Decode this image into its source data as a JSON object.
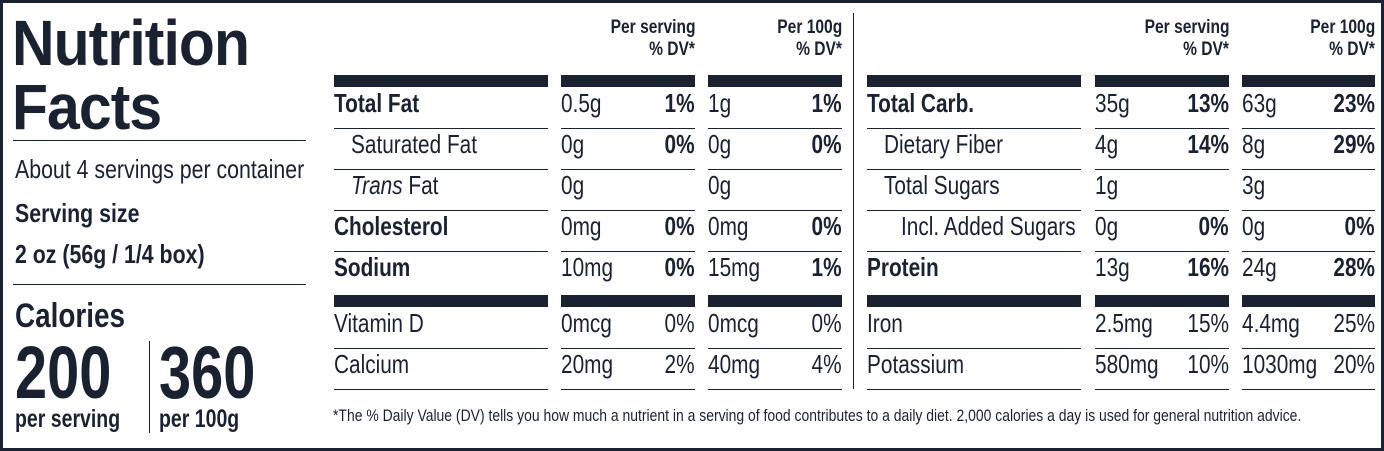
{
  "title_line1": "Nutrition",
  "title_line2": "Facts",
  "servings_per_container": "About 4 servings per container",
  "serving_size_label": "Serving size",
  "serving_size_value": "2 oz (56g / 1/4 box)",
  "calories_label": "Calories",
  "calories_per_serving": "200",
  "calories_per_serving_label": "per serving",
  "calories_per_100g": "360",
  "calories_per_100g_label": "per 100g",
  "column_headers": {
    "per_serving": "Per serving",
    "per_100g": "Per 100g",
    "dv": "% DV*"
  },
  "left_nutrients": [
    {
      "name": "Total Fat",
      "bold": true,
      "indent": 0,
      "serv_amt": "0.5g",
      "serv_dv": "1%",
      "g100_amt": "1g",
      "g100_dv": "1%"
    },
    {
      "name": "Saturated Fat",
      "bold": false,
      "indent": 1,
      "serv_amt": "0g",
      "serv_dv": "0%",
      "g100_amt": "0g",
      "g100_dv": "0%"
    },
    {
      "name_italic": "Trans",
      "name": " Fat",
      "bold": false,
      "indent": 1,
      "serv_amt": "0g",
      "serv_dv": "",
      "g100_amt": "0g",
      "g100_dv": ""
    },
    {
      "name": "Cholesterol",
      "bold": true,
      "indent": 0,
      "serv_amt": "0mg",
      "serv_dv": "0%",
      "g100_amt": "0mg",
      "g100_dv": "0%"
    },
    {
      "name": "Sodium",
      "bold": true,
      "indent": 0,
      "serv_amt": "10mg",
      "serv_dv": "0%",
      "g100_amt": "15mg",
      "g100_dv": "1%"
    }
  ],
  "right_nutrients": [
    {
      "name": "Total Carb.",
      "bold": true,
      "indent": 0,
      "serv_amt": "35g",
      "serv_dv": "13%",
      "g100_amt": "63g",
      "g100_dv": "23%"
    },
    {
      "name": "Dietary Fiber",
      "bold": false,
      "indent": 1,
      "serv_amt": "4g",
      "serv_dv": "14%",
      "g100_amt": "8g",
      "g100_dv": "29%"
    },
    {
      "name": "Total Sugars",
      "bold": false,
      "indent": 1,
      "serv_amt": "1g",
      "serv_dv": "",
      "g100_amt": "3g",
      "g100_dv": ""
    },
    {
      "name": "Incl. Added Sugars",
      "bold": false,
      "indent": 2,
      "serv_amt": "0g",
      "serv_dv": "0%",
      "g100_amt": "0g",
      "g100_dv": "0%"
    },
    {
      "name": "Protein",
      "bold": true,
      "indent": 0,
      "serv_amt": "13g",
      "serv_dv": "16%",
      "g100_amt": "24g",
      "g100_dv": "28%"
    }
  ],
  "left_micros": [
    {
      "name": "Vitamin D",
      "serv_amt": "0mcg",
      "serv_dv": "0%",
      "g100_amt": "0mcg",
      "g100_dv": "0%"
    },
    {
      "name": "Calcium",
      "serv_amt": "20mg",
      "serv_dv": "2%",
      "g100_amt": "40mg",
      "g100_dv": "4%"
    }
  ],
  "right_micros": [
    {
      "name": "Iron",
      "serv_amt": "2.5mg",
      "serv_dv": "15%",
      "g100_amt": "4.4mg",
      "g100_dv": "25%"
    },
    {
      "name": "Potassium",
      "serv_amt": "580mg",
      "serv_dv": "10%",
      "g100_amt": "1030mg",
      "g100_dv": "20%"
    }
  ],
  "footnote": "*The % Daily Value (DV) tells you how much a nutrient in a serving of food contributes to a daily diet. 2,000 calories a day is used for general nutrition advice."
}
